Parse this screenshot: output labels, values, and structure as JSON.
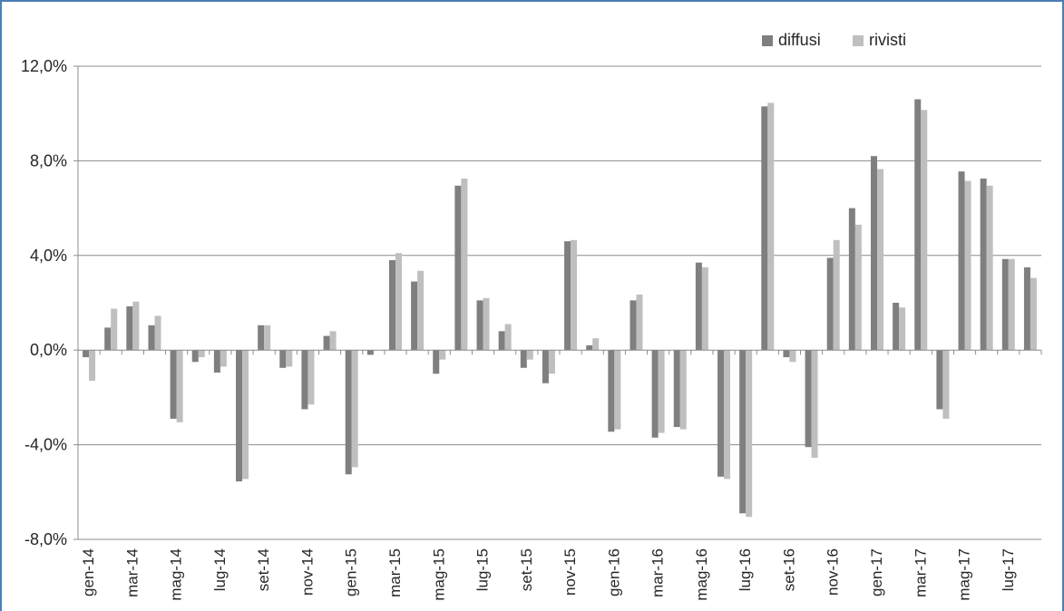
{
  "chart_data": {
    "type": "bar",
    "categories": [
      "gen-14",
      "feb-14",
      "mar-14",
      "apr-14",
      "mag-14",
      "giu-14",
      "lug-14",
      "ago-14",
      "set-14",
      "ott-14",
      "nov-14",
      "dic-14",
      "gen-15",
      "feb-15",
      "mar-15",
      "apr-15",
      "mag-15",
      "giu-15",
      "lug-15",
      "ago-15",
      "set-15",
      "ott-15",
      "nov-15",
      "dic-15",
      "gen-16",
      "feb-16",
      "mar-16",
      "apr-16",
      "mag-16",
      "giu-16",
      "lug-16",
      "ago-16",
      "set-16",
      "ott-16",
      "nov-16",
      "dic-16",
      "gen-17",
      "feb-17",
      "mar-17",
      "apr-17",
      "mag-17",
      "giu-17",
      "lug-17",
      "ago-17"
    ],
    "tick_labels": [
      "gen-14",
      "mar-14",
      "mag-14",
      "lug-14",
      "set-14",
      "nov-14",
      "gen-15",
      "mar-15",
      "mag-15",
      "lug-15",
      "set-15",
      "nov-15",
      "gen-16",
      "mar-16",
      "mag-16",
      "lug-16",
      "set-16",
      "nov-16",
      "gen-17",
      "mar-17",
      "mag-17",
      "lug-17"
    ],
    "series": [
      {
        "name": "diffusi",
        "color": "#7f7f7f",
        "values": [
          -0.3,
          0.95,
          1.85,
          1.05,
          -2.9,
          -0.5,
          -0.95,
          -5.55,
          1.05,
          -0.75,
          -2.5,
          0.6,
          -5.25,
          -0.2,
          3.8,
          2.9,
          -1.0,
          6.95,
          2.1,
          0.8,
          -0.75,
          -1.4,
          4.6,
          0.2,
          -3.45,
          2.1,
          -3.7,
          -3.25,
          3.7,
          -5.35,
          -6.9,
          10.3,
          -0.3,
          -4.1,
          3.9,
          6.0,
          8.2,
          2.0,
          10.6,
          -2.5,
          7.55,
          7.25,
          3.85,
          3.5
        ]
      },
      {
        "name": "rivisti",
        "color": "#bfbfbf",
        "values": [
          -1.3,
          1.75,
          2.05,
          1.45,
          -3.05,
          -0.3,
          -0.7,
          -5.45,
          1.05,
          -0.7,
          -2.3,
          0.8,
          -4.95,
          0.0,
          4.1,
          3.35,
          -0.4,
          7.25,
          2.2,
          1.1,
          -0.4,
          -1.0,
          4.65,
          0.5,
          -3.35,
          2.35,
          -3.5,
          -3.35,
          3.5,
          -5.45,
          -7.05,
          10.45,
          -0.5,
          -4.55,
          4.65,
          5.3,
          7.65,
          1.8,
          10.15,
          -2.9,
          7.15,
          6.95,
          3.85,
          3.05
        ]
      }
    ],
    "y_tick_labels": [
      "-8,0%",
      "-4,0%",
      "0,0%",
      "4,0%",
      "8,0%",
      "12,0%"
    ],
    "y_ticks": [
      -8,
      -4,
      0,
      4,
      8,
      12
    ],
    "ylim": [
      -8,
      12
    ],
    "grid": true,
    "legend_position": "top-right",
    "legend_items": [
      "diffusi",
      "rivisti"
    ]
  }
}
